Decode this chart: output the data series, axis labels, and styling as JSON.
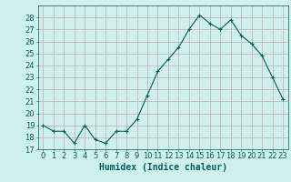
{
  "x": [
    0,
    1,
    2,
    3,
    4,
    5,
    6,
    7,
    8,
    9,
    10,
    11,
    12,
    13,
    14,
    15,
    16,
    17,
    18,
    19,
    20,
    21,
    22,
    23
  ],
  "y": [
    19,
    18.5,
    18.5,
    17.5,
    19,
    17.8,
    17.5,
    18.5,
    18.5,
    19.5,
    21.5,
    23.5,
    24.5,
    25.5,
    27,
    28.2,
    27.5,
    27,
    27.8,
    26.5,
    25.8,
    24.8,
    23,
    21.2
  ],
  "line_color": "#006060",
  "marker": "+",
  "marker_size": 3,
  "bg_color": "#cff0ec",
  "grid_major_color": "#c8a8b0",
  "grid_minor_color": "#c8a8b0",
  "xlabel": "Humidex (Indice chaleur)",
  "ylim": [
    17,
    29
  ],
  "xlim": [
    -0.5,
    23.5
  ],
  "yticks": [
    17,
    18,
    19,
    20,
    21,
    22,
    23,
    24,
    25,
    26,
    27,
    28
  ],
  "xticks": [
    0,
    1,
    2,
    3,
    4,
    5,
    6,
    7,
    8,
    9,
    10,
    11,
    12,
    13,
    14,
    15,
    16,
    17,
    18,
    19,
    20,
    21,
    22,
    23
  ],
  "xlabel_fontsize": 7,
  "tick_fontsize": 6,
  "tick_color": "#006060",
  "axis_color": "#006060",
  "linewidth": 0.8
}
